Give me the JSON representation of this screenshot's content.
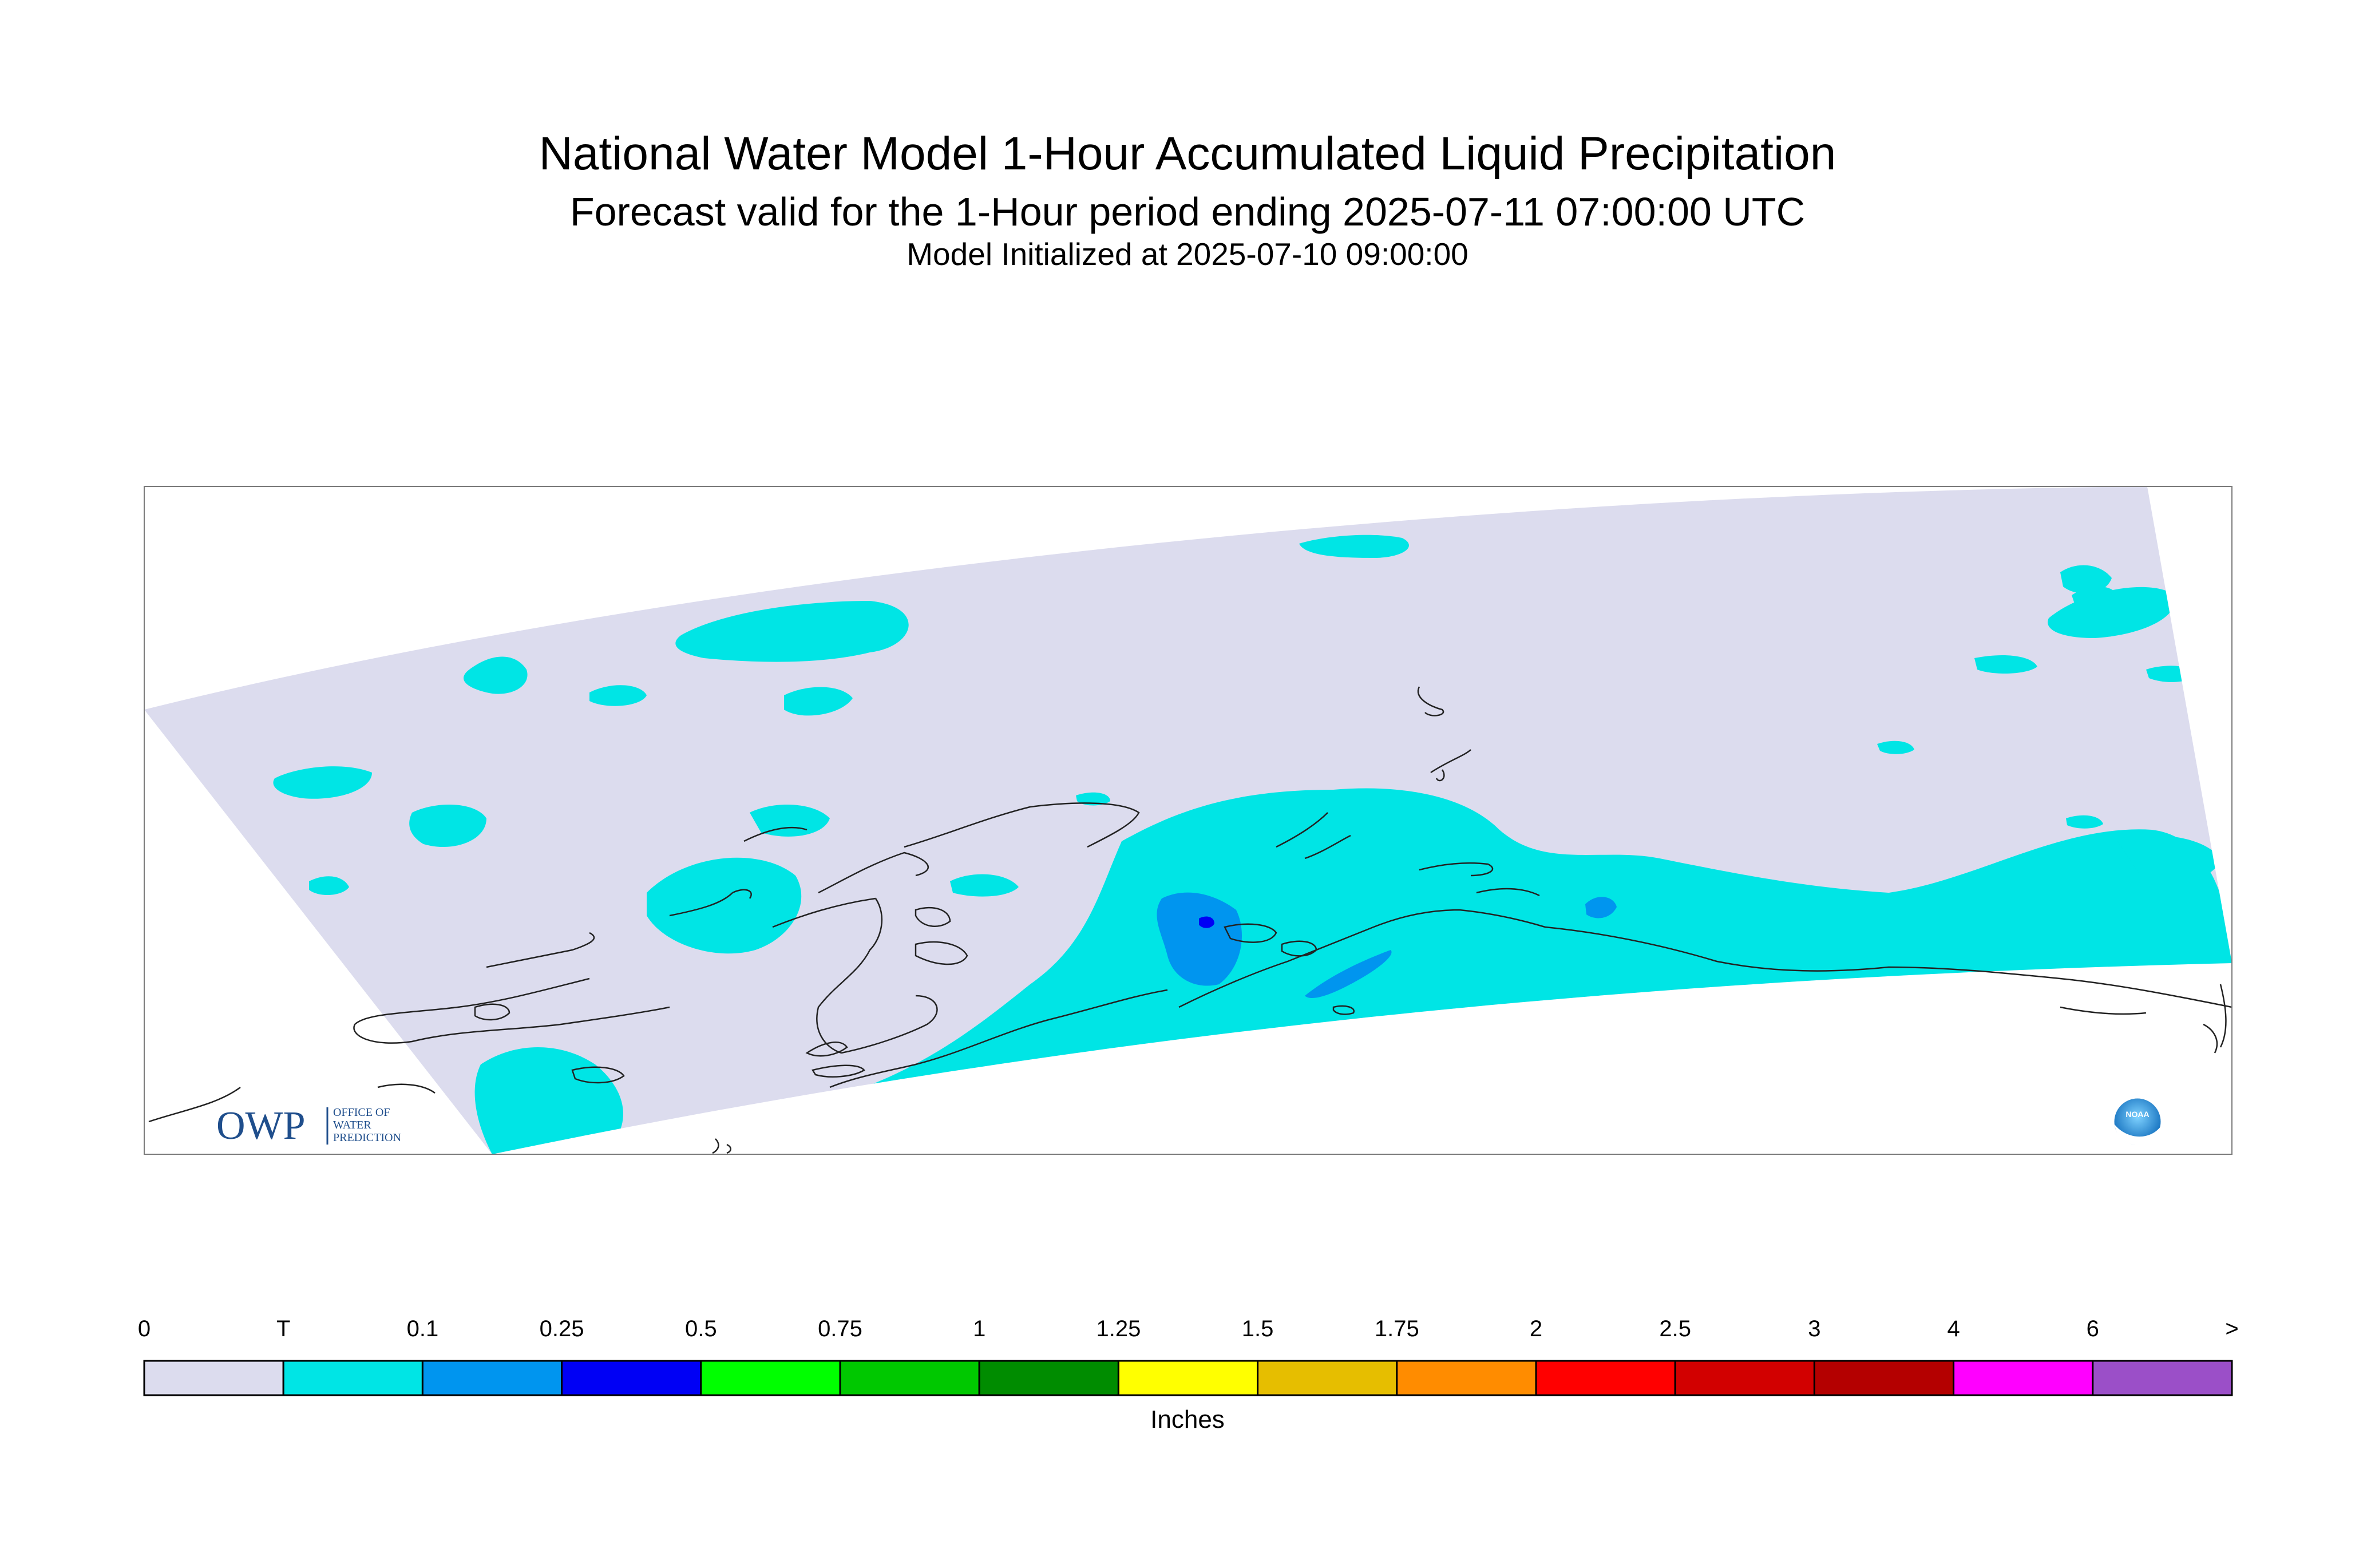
{
  "header": {
    "title": "National Water Model 1-Hour Accumulated Liquid Precipitation",
    "subtitle": "Forecast valid for the 1-Hour period ending 2025-07-11 07:00:00 UTC",
    "init_line": "Model Initialized at 2025-07-10 09:00:00"
  },
  "logos": {
    "owp_mark": "OWP",
    "owp_lines": [
      "OFFICE OF",
      "WATER",
      "PREDICTION"
    ],
    "noaa_mark": "NOAA"
  },
  "legend": {
    "unit_label": "Inches",
    "tick_labels": [
      "0",
      "T",
      "0.1",
      "0.25",
      "0.5",
      "0.75",
      "1",
      "1.25",
      "1.5",
      "1.75",
      "2",
      "2.5",
      "3",
      "4",
      "6",
      ">"
    ],
    "bins": [
      {
        "color": "#dcdcee"
      },
      {
        "color": "#00e5e5"
      },
      {
        "color": "#0095ef"
      },
      {
        "color": "#0000f5"
      },
      {
        "color": "#00ff00"
      },
      {
        "color": "#00c800"
      },
      {
        "color": "#008c00"
      },
      {
        "color": "#ffff00"
      },
      {
        "color": "#e6be00"
      },
      {
        "color": "#ff8c00"
      },
      {
        "color": "#ff0000"
      },
      {
        "color": "#d20000"
      },
      {
        "color": "#b40000"
      },
      {
        "color": "#ff00ff"
      },
      {
        "color": "#9b4fc8"
      }
    ]
  },
  "map": {
    "domain_fill": "#dcdcee",
    "precip_color": "#00e5e5",
    "moderate_color": "#0095ef",
    "heavy_color": "#0000f5"
  }
}
